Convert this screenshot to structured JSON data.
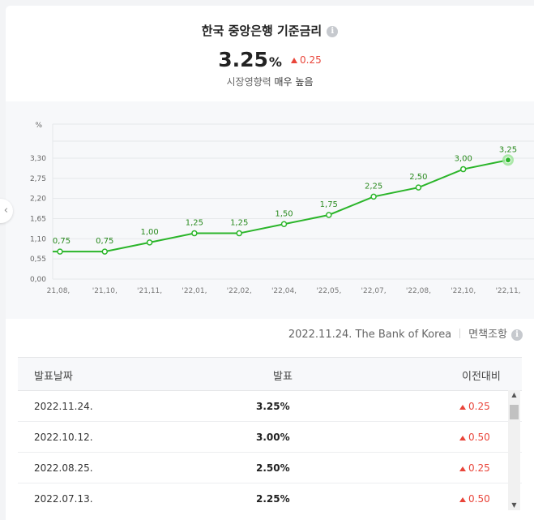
{
  "header": {
    "title": "한국 중앙은행 기준금리",
    "rate_value": "3.25",
    "rate_unit": "%",
    "rate_change": "0.25",
    "influence_prefix": "시장영향력",
    "influence_level": "매우 높음"
  },
  "chart_data": {
    "type": "line",
    "unit_label": "%",
    "y_ticks": [
      "0,00",
      "0,55",
      "1,10",
      "1,65",
      "2,20",
      "2,75",
      "3,30"
    ],
    "ylim": [
      0,
      3.3
    ],
    "x_ticks": [
      "21,08,",
      "'21,10,",
      "'21,11,",
      "'22,01,",
      "'22,02,",
      "'22,04,",
      "'22,05,",
      "'22,07,",
      "'22,08,",
      "'22,10,",
      "'22,11,"
    ],
    "points": [
      {
        "label": "0,75",
        "value": 0.75
      },
      {
        "label": "0,75",
        "value": 0.75
      },
      {
        "label": "1,00",
        "value": 1.0
      },
      {
        "label": "1,25",
        "value": 1.25
      },
      {
        "label": "1,25",
        "value": 1.25
      },
      {
        "label": "1,50",
        "value": 1.5
      },
      {
        "label": "1,75",
        "value": 1.75
      },
      {
        "label": "2,25",
        "value": 2.25
      },
      {
        "label": "2,50",
        "value": 2.5
      },
      {
        "label": "3,00",
        "value": 3.0
      },
      {
        "label": "3,25",
        "value": 3.25
      }
    ],
    "grid": true,
    "line_color": "#2bb52a",
    "highlight_color": "#9ee59a"
  },
  "source": {
    "text": "2022.11.24. The Bank of Korea",
    "disclaimer": "면책조항"
  },
  "table": {
    "headers": {
      "date": "발표날짜",
      "rate": "발표",
      "change": "이전대비"
    },
    "rows": [
      {
        "date": "2022.11.24.",
        "rate": "3.25%",
        "change": "0.25"
      },
      {
        "date": "2022.10.12.",
        "rate": "3.00%",
        "change": "0.50"
      },
      {
        "date": "2022.08.25.",
        "rate": "2.50%",
        "change": "0.25"
      },
      {
        "date": "2022.07.13.",
        "rate": "2.25%",
        "change": "0.50"
      }
    ]
  },
  "colors": {
    "up": "#e9453a",
    "accent": "#2bb52a"
  },
  "icons": {
    "info": "info-icon",
    "prev": "chevron-left-icon",
    "up_arrow": "triangle-up-icon"
  }
}
